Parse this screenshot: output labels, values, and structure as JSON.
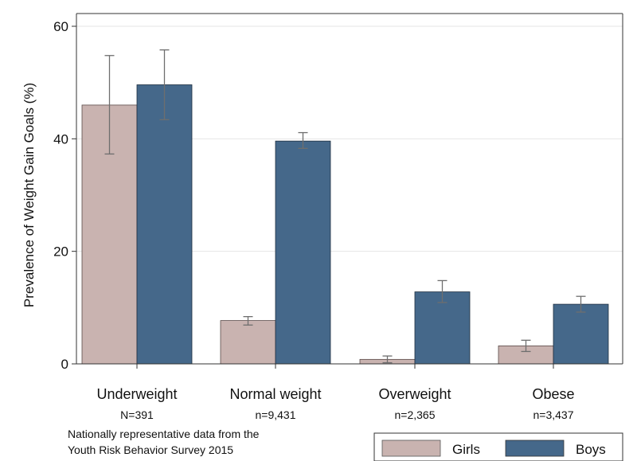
{
  "chart_data": {
    "type": "bar",
    "title": "",
    "xlabel": "",
    "ylabel": "Prevalence of Weight Gain Goals (%)",
    "ylim": [
      0,
      60
    ],
    "yticks": [
      0,
      20,
      40,
      60
    ],
    "grid": true,
    "categories": [
      "Underweight",
      "Normal weight",
      "Overweight",
      "Obese"
    ],
    "sample_sizes": [
      "N=391",
      "n=9,431",
      "n=2,365",
      "n=3,437"
    ],
    "series": [
      {
        "name": "Girls",
        "color": "#c9b3b0",
        "values": [
          46.0,
          7.7,
          0.8,
          3.2
        ],
        "ci_low": [
          37.3,
          6.9,
          0.2,
          2.2
        ],
        "ci_high": [
          54.8,
          8.4,
          1.4,
          4.2
        ]
      },
      {
        "name": "Boys",
        "color": "#45688a",
        "values": [
          49.6,
          39.6,
          12.8,
          10.6
        ],
        "ci_low": [
          43.4,
          38.3,
          10.9,
          9.2
        ],
        "ci_high": [
          55.8,
          41.1,
          14.8,
          12.0
        ]
      }
    ],
    "note": [
      "Nationally representative data from the",
      "Youth Risk Behavior Survey 2015"
    ],
    "legend_position": "bottom-right"
  }
}
